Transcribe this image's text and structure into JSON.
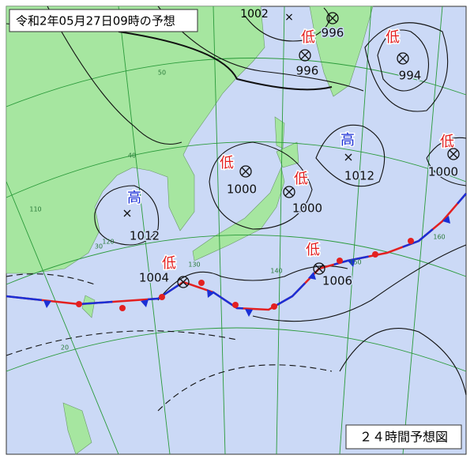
{
  "title": "令和2年05月27日09時の予想",
  "footer": "２４時間予想図",
  "isobar_labels": [
    1002
  ],
  "systems": [
    {
      "type": "低",
      "pressure": 996
    },
    {
      "type": "低",
      "pressure": 996
    },
    {
      "type": "低",
      "pressure": 994
    },
    {
      "type": "高",
      "pressure": 1012
    },
    {
      "type": "低",
      "pressure": 1000
    },
    {
      "type": "低",
      "pressure": 1000
    },
    {
      "type": "低",
      "pressure": 1000
    },
    {
      "type": "高",
      "pressure": 1012
    },
    {
      "type": "低",
      "pressure": 1004
    },
    {
      "type": "低",
      "pressure": 1006
    }
  ],
  "grid_labels": [
    "50",
    "40",
    "30",
    "20",
    "110",
    "120",
    "130",
    "140",
    "150",
    "160"
  ]
}
